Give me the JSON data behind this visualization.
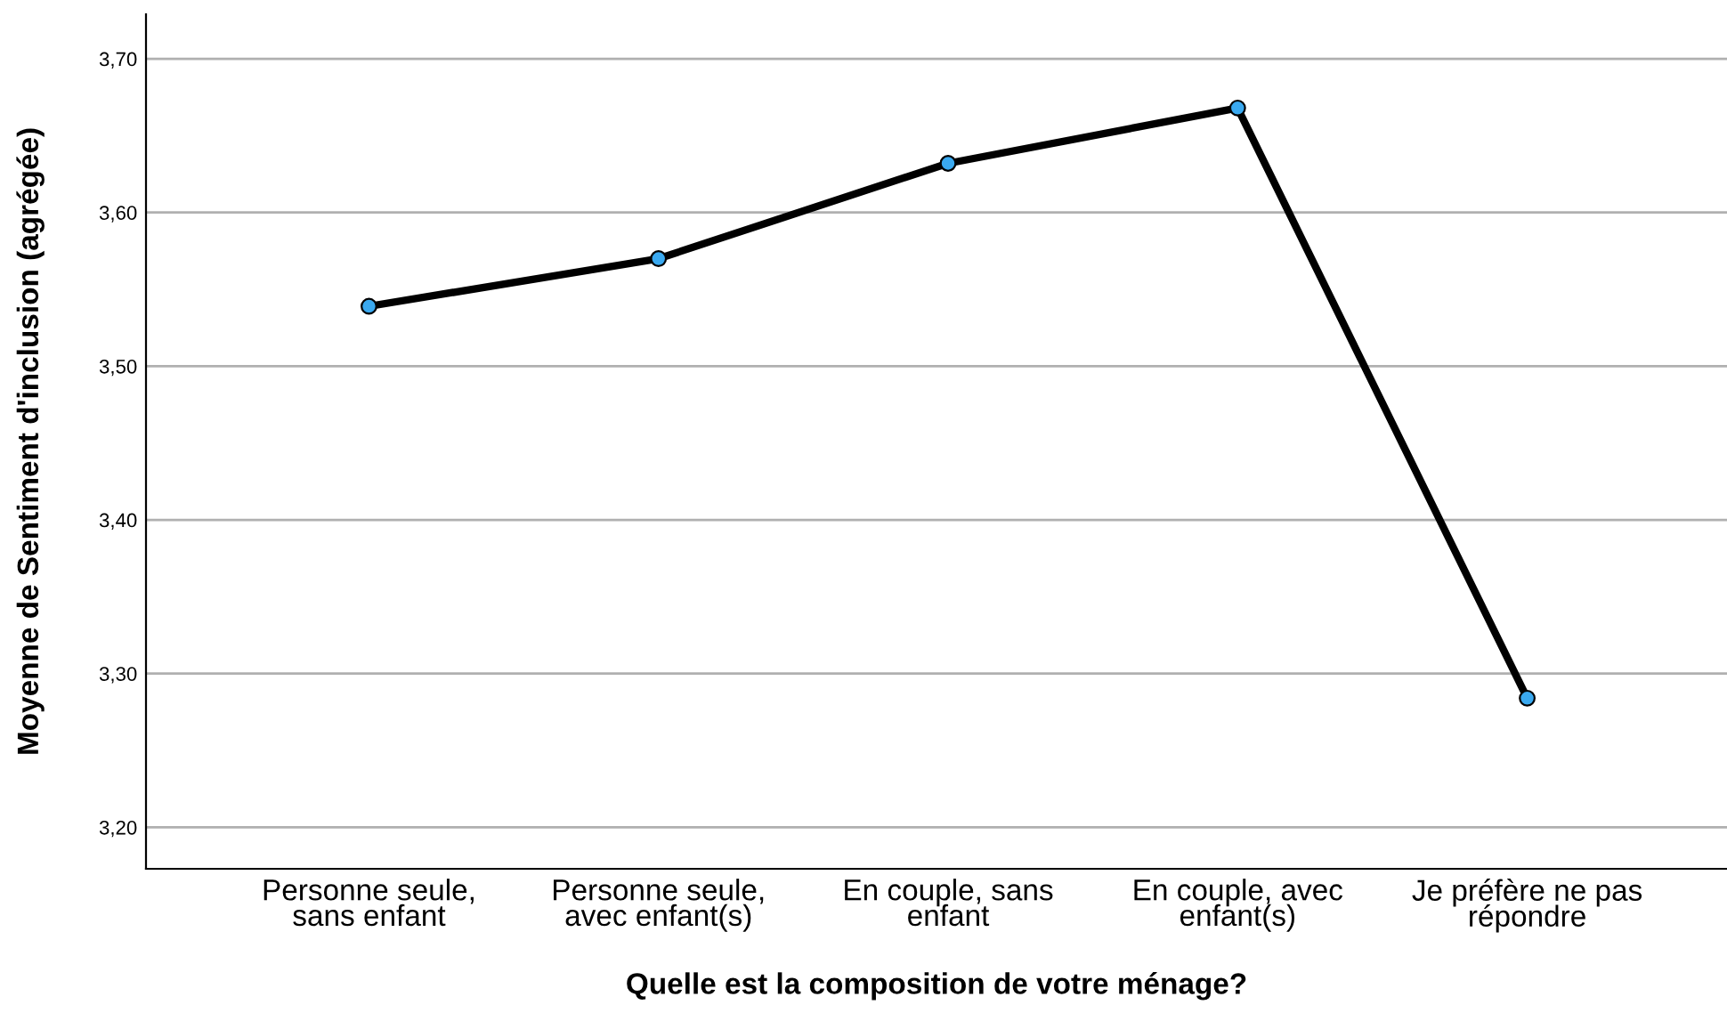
{
  "chart_data": {
    "type": "line",
    "xlabel": "Quelle est la composition de votre ménage?",
    "ylabel": "Moyenne de Sentiment d'inclusion (agrégée)",
    "categories": [
      "Personne seule,\nsans enfant",
      "Personne seule,\navec enfant(s)",
      "En couple, sans\nenfant",
      "En couple, avec\nenfant(s)",
      "Je préfère ne pas\nrépondre"
    ],
    "series": [
      {
        "color": "#000000",
        "values": [
          3.539,
          3.57,
          3.632,
          3.668,
          3.284
        ]
      }
    ],
    "marker": "circle",
    "ylim": [
      3.173,
      3.729
    ],
    "yticks": [
      {
        "value": 3.2,
        "label": "3,20"
      },
      {
        "value": 3.3,
        "label": "3,30"
      },
      {
        "value": 3.4,
        "label": "3,40"
      },
      {
        "value": 3.5,
        "label": "3,50"
      },
      {
        "value": 3.6,
        "label": "3,60"
      },
      {
        "value": 3.7,
        "label": "3,70"
      }
    ],
    "grid": "y",
    "legend": false
  }
}
